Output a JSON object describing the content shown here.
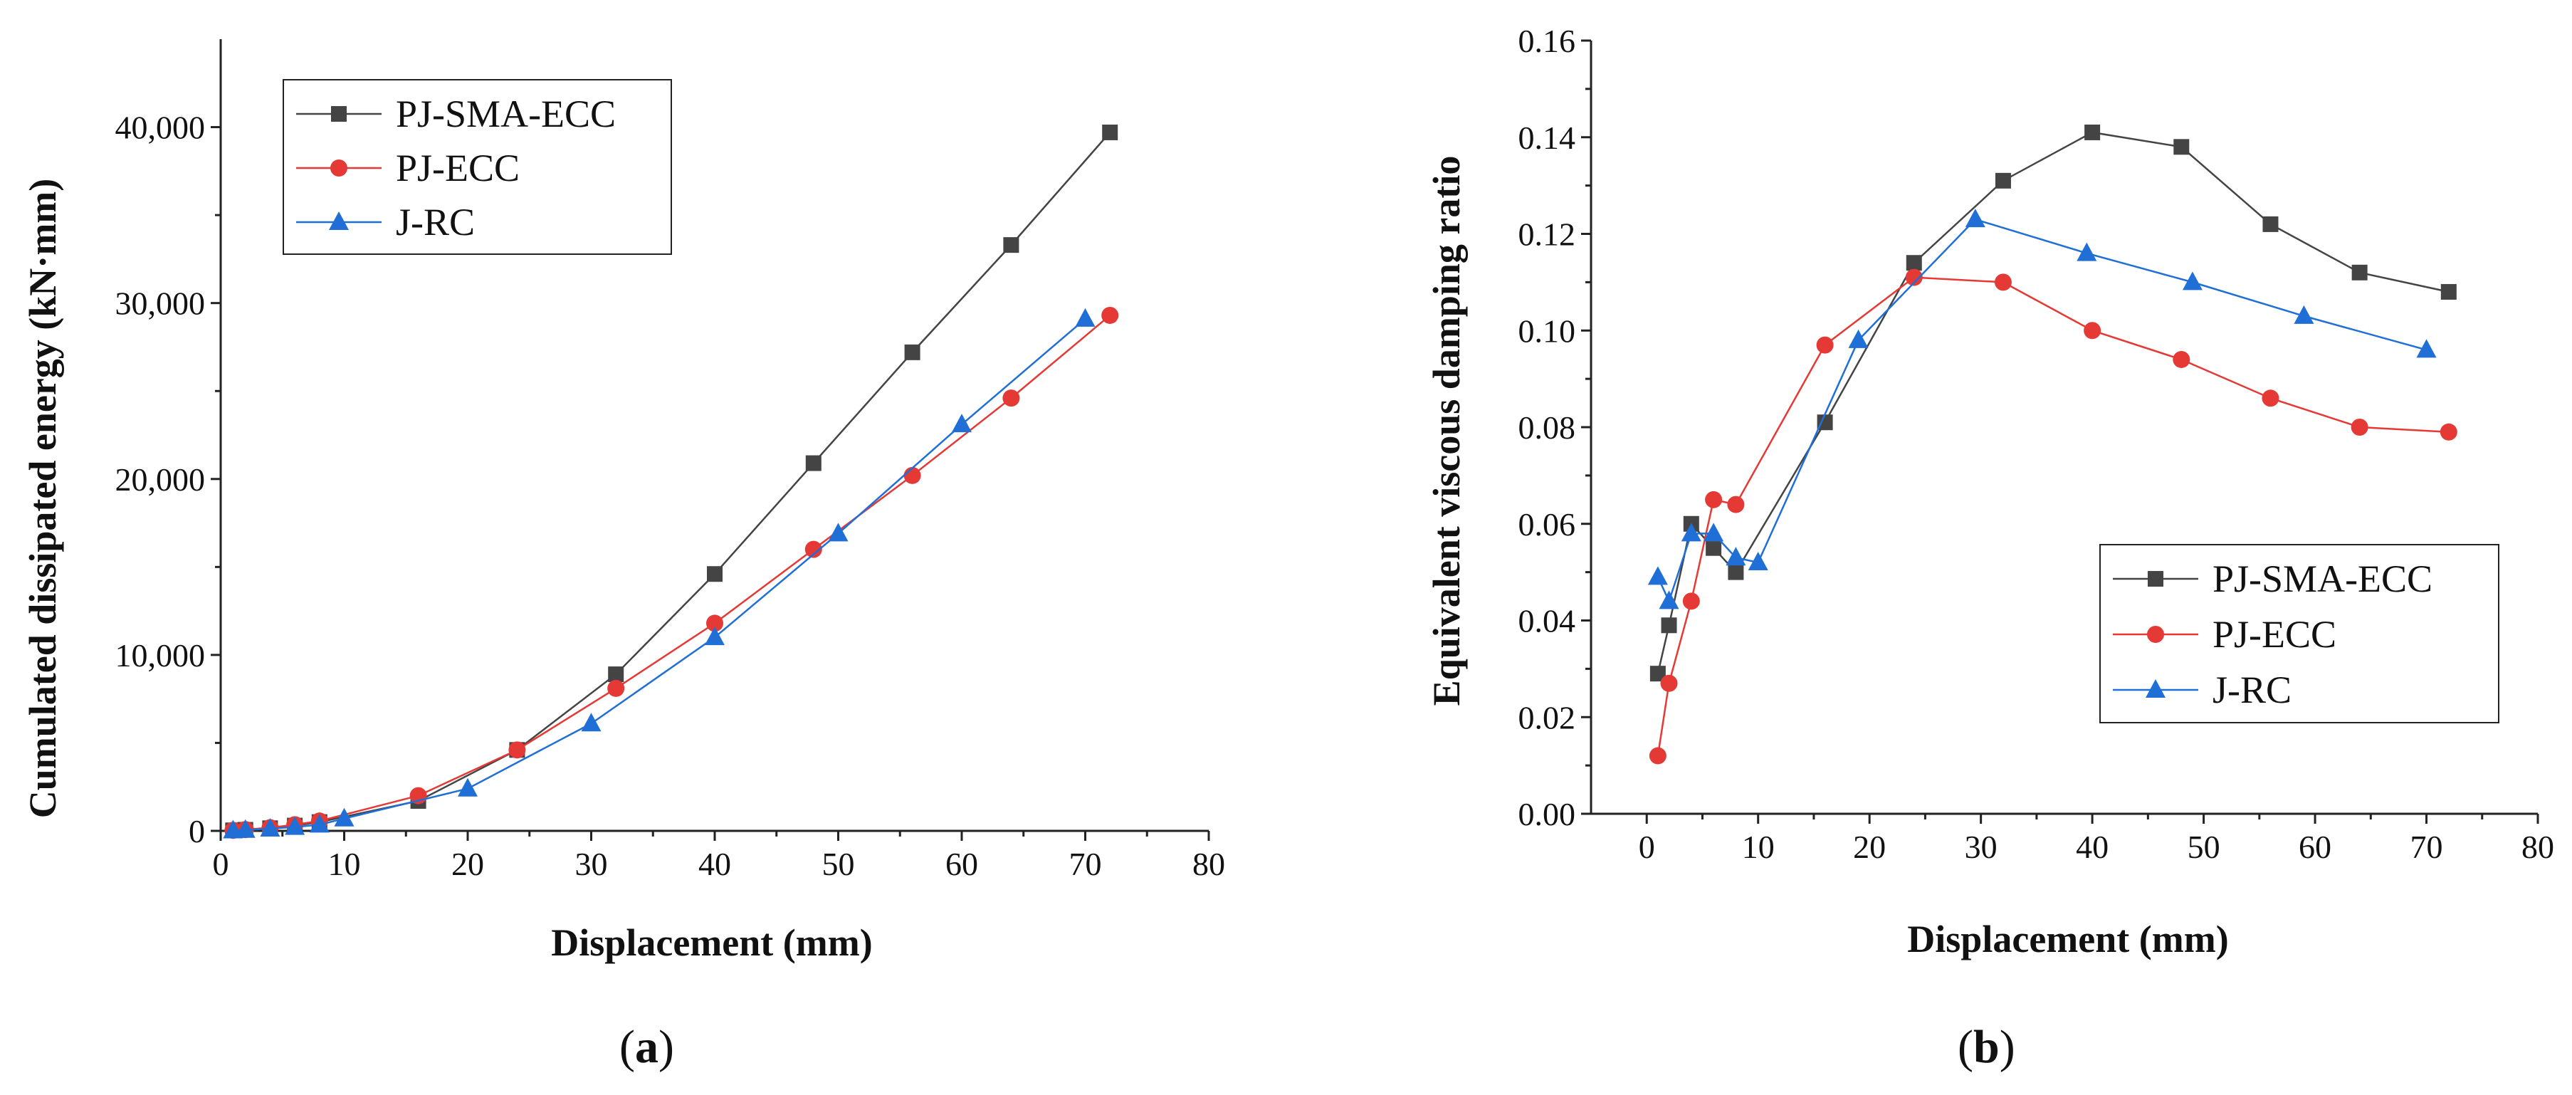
{
  "figure": {
    "panels": [
      {
        "label_open": "(",
        "label_letter": "a",
        "label_close": ")"
      },
      {
        "label_open": "(",
        "label_letter": "b",
        "label_close": ")"
      }
    ]
  },
  "colors": {
    "PJ-SMA-ECC": "#444444",
    "PJ-ECC": "#e53935",
    "J-RC": "#1f6fd6"
  },
  "chart_data": [
    {
      "type": "line",
      "title": "",
      "xlabel": "Displacement (mm)",
      "ylabel": "Cumulated dissipated energy (kN·mm)",
      "xlim": [
        0,
        80
      ],
      "ylim": [
        0,
        45000
      ],
      "xticks": [
        0,
        10,
        20,
        30,
        40,
        50,
        60,
        70,
        80
      ],
      "xtick_labels": [
        "0",
        "10",
        "20",
        "30",
        "40",
        "50",
        "60",
        "70",
        "80"
      ],
      "yticks": [
        0,
        10000,
        20000,
        30000,
        40000
      ],
      "ytick_labels": [
        "0",
        "10,000",
        "20,000",
        "30,000",
        "40,000"
      ],
      "grid": false,
      "legend_position": "top-left",
      "series": [
        {
          "name": "PJ-SMA-ECC",
          "marker": "square",
          "x": [
            1,
            2,
            4,
            6,
            8,
            16,
            24,
            32,
            40,
            48,
            56,
            64,
            72
          ],
          "y": [
            30,
            60,
            150,
            300,
            500,
            1700,
            4600,
            8900,
            14600,
            20900,
            27200,
            33300,
            39700
          ]
        },
        {
          "name": "PJ-ECC",
          "marker": "circle",
          "x": [
            1,
            2,
            4,
            6,
            8,
            16,
            24,
            32,
            40,
            48,
            56,
            64,
            72
          ],
          "y": [
            30,
            70,
            180,
            350,
            560,
            2000,
            4600,
            8100,
            11800,
            16000,
            20200,
            24600,
            29300
          ]
        },
        {
          "name": "J-RC",
          "marker": "triangle",
          "x": [
            1,
            2,
            4,
            6,
            8,
            10,
            20,
            30,
            40,
            50,
            60,
            70
          ],
          "y": [
            20,
            50,
            120,
            220,
            350,
            700,
            2400,
            6100,
            11000,
            16900,
            23100,
            29100
          ]
        }
      ]
    },
    {
      "type": "line",
      "title": "",
      "xlabel": "Displacement (mm)",
      "ylabel": "Equivalent viscous damping ratio",
      "xlim": [
        -5,
        80
      ],
      "ylim": [
        0,
        0.16
      ],
      "xticks": [
        0,
        10,
        20,
        30,
        40,
        50,
        60,
        70,
        80
      ],
      "xtick_labels": [
        "0",
        "10",
        "20",
        "30",
        "40",
        "50",
        "60",
        "70",
        "80"
      ],
      "yticks": [
        0,
        0.02,
        0.04,
        0.06,
        0.08,
        0.1,
        0.12,
        0.14,
        0.16
      ],
      "ytick_labels": [
        "0.00",
        "0.02",
        "0.04",
        "0.06",
        "0.08",
        "0.10",
        "0.12",
        "0.14",
        "0.16"
      ],
      "grid": false,
      "legend_position": "bottom-right",
      "series": [
        {
          "name": "PJ-SMA-ECC",
          "marker": "square",
          "x": [
            1,
            2,
            4,
            6,
            8,
            16,
            24,
            32,
            40,
            48,
            56,
            64,
            72
          ],
          "y": [
            0.029,
            0.039,
            0.06,
            0.055,
            0.05,
            0.081,
            0.114,
            0.131,
            0.141,
            0.138,
            0.122,
            0.112,
            0.108
          ]
        },
        {
          "name": "PJ-ECC",
          "marker": "circle",
          "x": [
            1,
            2,
            4,
            6,
            8,
            16,
            24,
            32,
            40,
            48,
            56,
            64,
            72
          ],
          "y": [
            0.012,
            0.027,
            0.044,
            0.065,
            0.064,
            0.097,
            0.111,
            0.11,
            0.1,
            0.094,
            0.086,
            0.08,
            0.079
          ]
        },
        {
          "name": "J-RC",
          "marker": "triangle",
          "x": [
            1,
            2,
            4,
            6,
            8,
            10,
            19,
            29.5,
            39.5,
            49,
            59,
            70
          ],
          "y": [
            0.049,
            0.044,
            0.058,
            0.058,
            0.053,
            0.052,
            0.098,
            0.123,
            0.116,
            0.11,
            0.103,
            0.096
          ]
        }
      ]
    }
  ]
}
